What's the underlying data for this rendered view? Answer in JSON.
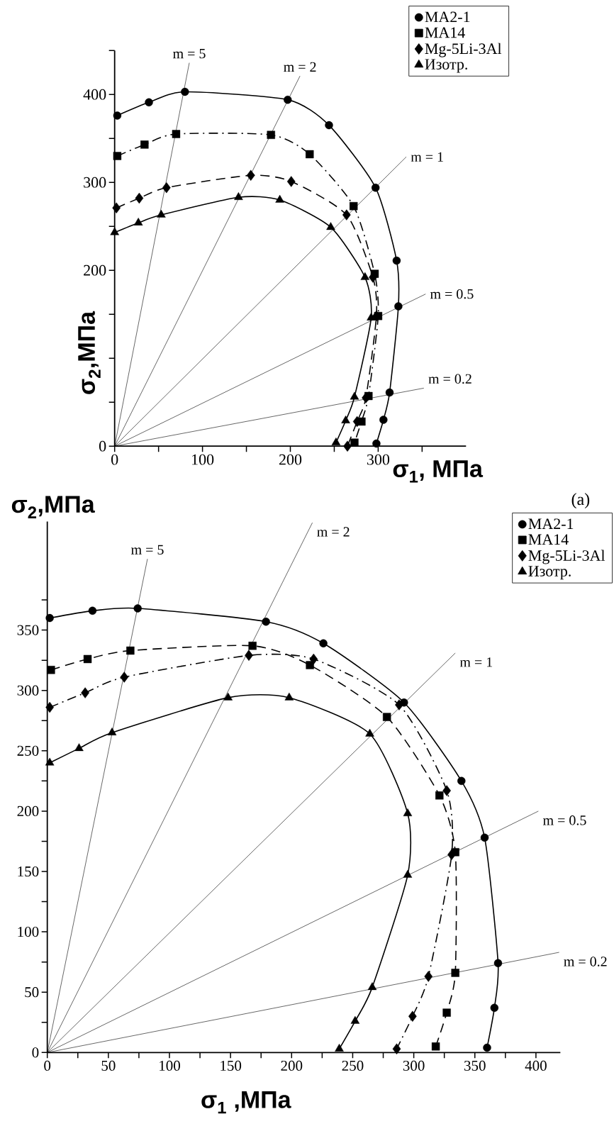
{
  "chart_data": [
    {
      "type": "line",
      "xlabel": "σ$_{1}$, МПа",
      "ylabel": "σ$_{2}$,МПа",
      "legend": "top right",
      "annotations": [
        "(a)"
      ],
      "xlim": [
        0,
        400
      ],
      "ylim": [
        0,
        450
      ],
      "xticks": [
        0,
        {
          "value": 50,
          "label": null
        },
        100,
        {
          "value": 150,
          "label": null
        },
        200,
        {
          "value": 250,
          "label": null
        },
        300,
        {
          "value": 350,
          "label": null
        }
      ],
      "yticks": [
        0,
        {
          "value": 50,
          "label": null
        },
        {
          "value": 100,
          "label": null
        },
        {
          "value": 150,
          "label": null
        },
        200,
        {
          "value": 250,
          "label": null
        },
        300,
        {
          "value": 350,
          "label": null
        },
        400,
        {
          "value": 450,
          "label": null
        }
      ],
      "series": [
        {
          "name": "m = 5",
          "type": "line",
          "color": "#000000",
          "marker": "none",
          "x": [
            0,
            85
          ],
          "values": [
            0,
            436
          ]
        },
        {
          "name": "m = 2",
          "type": "line",
          "color": "#000000",
          "marker": "none",
          "x": [
            0,
            211
          ],
          "values": [
            0,
            421
          ]
        },
        {
          "name": "m = 1",
          "type": "line",
          "color": "#000000",
          "marker": "none",
          "x": [
            0,
            332
          ],
          "values": [
            0,
            329
          ]
        },
        {
          "name": "m = 0.5",
          "type": "line",
          "color": "#000000",
          "marker": "none",
          "x": [
            0,
            354
          ],
          "values": [
            0,
            173
          ]
        },
        {
          "name": "m = 0.2",
          "type": "line",
          "color": "#000000",
          "marker": "none",
          "x": [
            0,
            352
          ],
          "values": [
            0,
            66
          ]
        },
        {
          "name": "MA2-1",
          "type": "line",
          "color": "#000000",
          "marker": "circle",
          "line_style": "solid",
          "x": [
            3,
            39,
            80,
            197,
            244,
            297,
            321,
            323,
            313,
            306,
            298
          ],
          "values": [
            376,
            391,
            403,
            394,
            365,
            294,
            211,
            159,
            61,
            30,
            3
          ]
        },
        {
          "name": "MA14",
          "type": "line",
          "color": "#000000",
          "marker": "square",
          "line_style": "dashdot",
          "x": [
            3,
            34,
            70,
            178,
            222,
            272,
            296,
            300,
            289,
            281,
            273
          ],
          "values": [
            330,
            343,
            355,
            354,
            332,
            273,
            196,
            148,
            57,
            28,
            4
          ]
        },
        {
          "name": "Mg-5Li-3Al",
          "type": "line",
          "color": "#000000",
          "marker": "diamond",
          "line_style": "dashed",
          "x": [
            2,
            28,
            59,
            155,
            201,
            264,
            294,
            298,
            286,
            276,
            265
          ],
          "values": [
            271,
            282,
            294,
            308,
            301,
            263,
            192,
            148,
            55,
            28,
            0
          ]
        },
        {
          "name": "Изотр.",
          "type": "line",
          "color": "#000000",
          "marker": "triangle",
          "line_style": "solid",
          "x": [
            0,
            27,
            53,
            141,
            188,
            246,
            285,
            292,
            273,
            263,
            252
          ],
          "values": [
            243,
            254,
            263,
            283,
            280,
            249,
            192,
            146,
            56,
            29,
            4
          ]
        }
      ]
    },
    {
      "type": "line",
      "xlabel": "σ$_{1}$ ,МПа",
      "ylabel": "σ$_{2}$,МПа",
      "legend": "top right",
      "xlim": [
        0,
        420
      ],
      "ylim": [
        0,
        440
      ],
      "xticks": [
        0,
        {
          "value": 25,
          "label": null
        },
        50,
        {
          "value": 75,
          "label": null
        },
        100,
        {
          "value": 125,
          "label": null
        },
        150,
        {
          "value": 175,
          "label": null
        },
        200,
        {
          "value": 225,
          "label": null
        },
        250,
        {
          "value": 275,
          "label": null
        },
        300,
        {
          "value": 325,
          "label": null
        },
        350,
        {
          "value": 375,
          "label": null
        },
        400
      ],
      "yticks": [
        0,
        {
          "value": 25,
          "label": null
        },
        50,
        {
          "value": 75,
          "label": null
        },
        100,
        {
          "value": 125,
          "label": null
        },
        150,
        {
          "value": 175,
          "label": null
        },
        200,
        {
          "value": 225,
          "label": null
        },
        250,
        {
          "value": 275,
          "label": null
        },
        300,
        {
          "value": 325,
          "label": null
        },
        350,
        {
          "value": 375,
          "label": null
        }
      ],
      "series": [
        {
          "name": "m = 5",
          "type": "line",
          "color": "#000000",
          "marker": "none",
          "x": [
            0,
            82
          ],
          "values": [
            0,
            409
          ]
        },
        {
          "name": "m = 2",
          "type": "line",
          "color": "#000000",
          "marker": "none",
          "x": [
            0,
            217
          ],
          "values": [
            0,
            439
          ]
        },
        {
          "name": "m = 1",
          "type": "line",
          "color": "#000000",
          "marker": "none",
          "x": [
            0,
            334
          ],
          "values": [
            0,
            331
          ]
        },
        {
          "name": "m = 0.5",
          "type": "line",
          "color": "#000000",
          "marker": "none",
          "x": [
            0,
            402
          ],
          "values": [
            0,
            200
          ]
        },
        {
          "name": "m = 0.2",
          "type": "line",
          "color": "#000000",
          "marker": "none",
          "x": [
            0,
            419
          ],
          "values": [
            0,
            83
          ]
        },
        {
          "name": "MA2-1",
          "type": "line",
          "color": "#000000",
          "marker": "circle",
          "line_style": "solid",
          "x": [
            2,
            37,
            74,
            179,
            226,
            292,
            339,
            358,
            369,
            366,
            360
          ],
          "values": [
            360,
            366,
            368,
            357,
            339,
            290,
            225,
            178,
            74,
            37,
            4
          ]
        },
        {
          "name": "MA14",
          "type": "line",
          "color": "#000000",
          "marker": "square",
          "line_style": "dashed",
          "x": [
            3,
            33,
            68,
            168,
            215,
            278,
            321,
            334,
            334,
            327,
            318
          ],
          "values": [
            317,
            326,
            333,
            337,
            321,
            278,
            213,
            166,
            66,
            33,
            5
          ]
        },
        {
          "name": "Mg-5Li-3Al",
          "type": "line",
          "color": "#000000",
          "marker": "diamond",
          "line_style": "dashdot",
          "x": [
            2,
            31,
            63,
            165,
            218,
            288,
            327,
            331,
            312,
            299,
            286
          ],
          "values": [
            286,
            298,
            311,
            329,
            326,
            288,
            217,
            164,
            63,
            30,
            3
          ]
        },
        {
          "name": "Изотр.",
          "type": "line",
          "color": "#000000",
          "marker": "triangle",
          "line_style": "solid",
          "x": [
            2,
            26,
            53,
            148,
            198,
            264,
            295,
            295,
            266,
            252,
            239
          ],
          "values": [
            240,
            252,
            265,
            294,
            294,
            264,
            198,
            147,
            54,
            26,
            3
          ]
        }
      ]
    }
  ]
}
